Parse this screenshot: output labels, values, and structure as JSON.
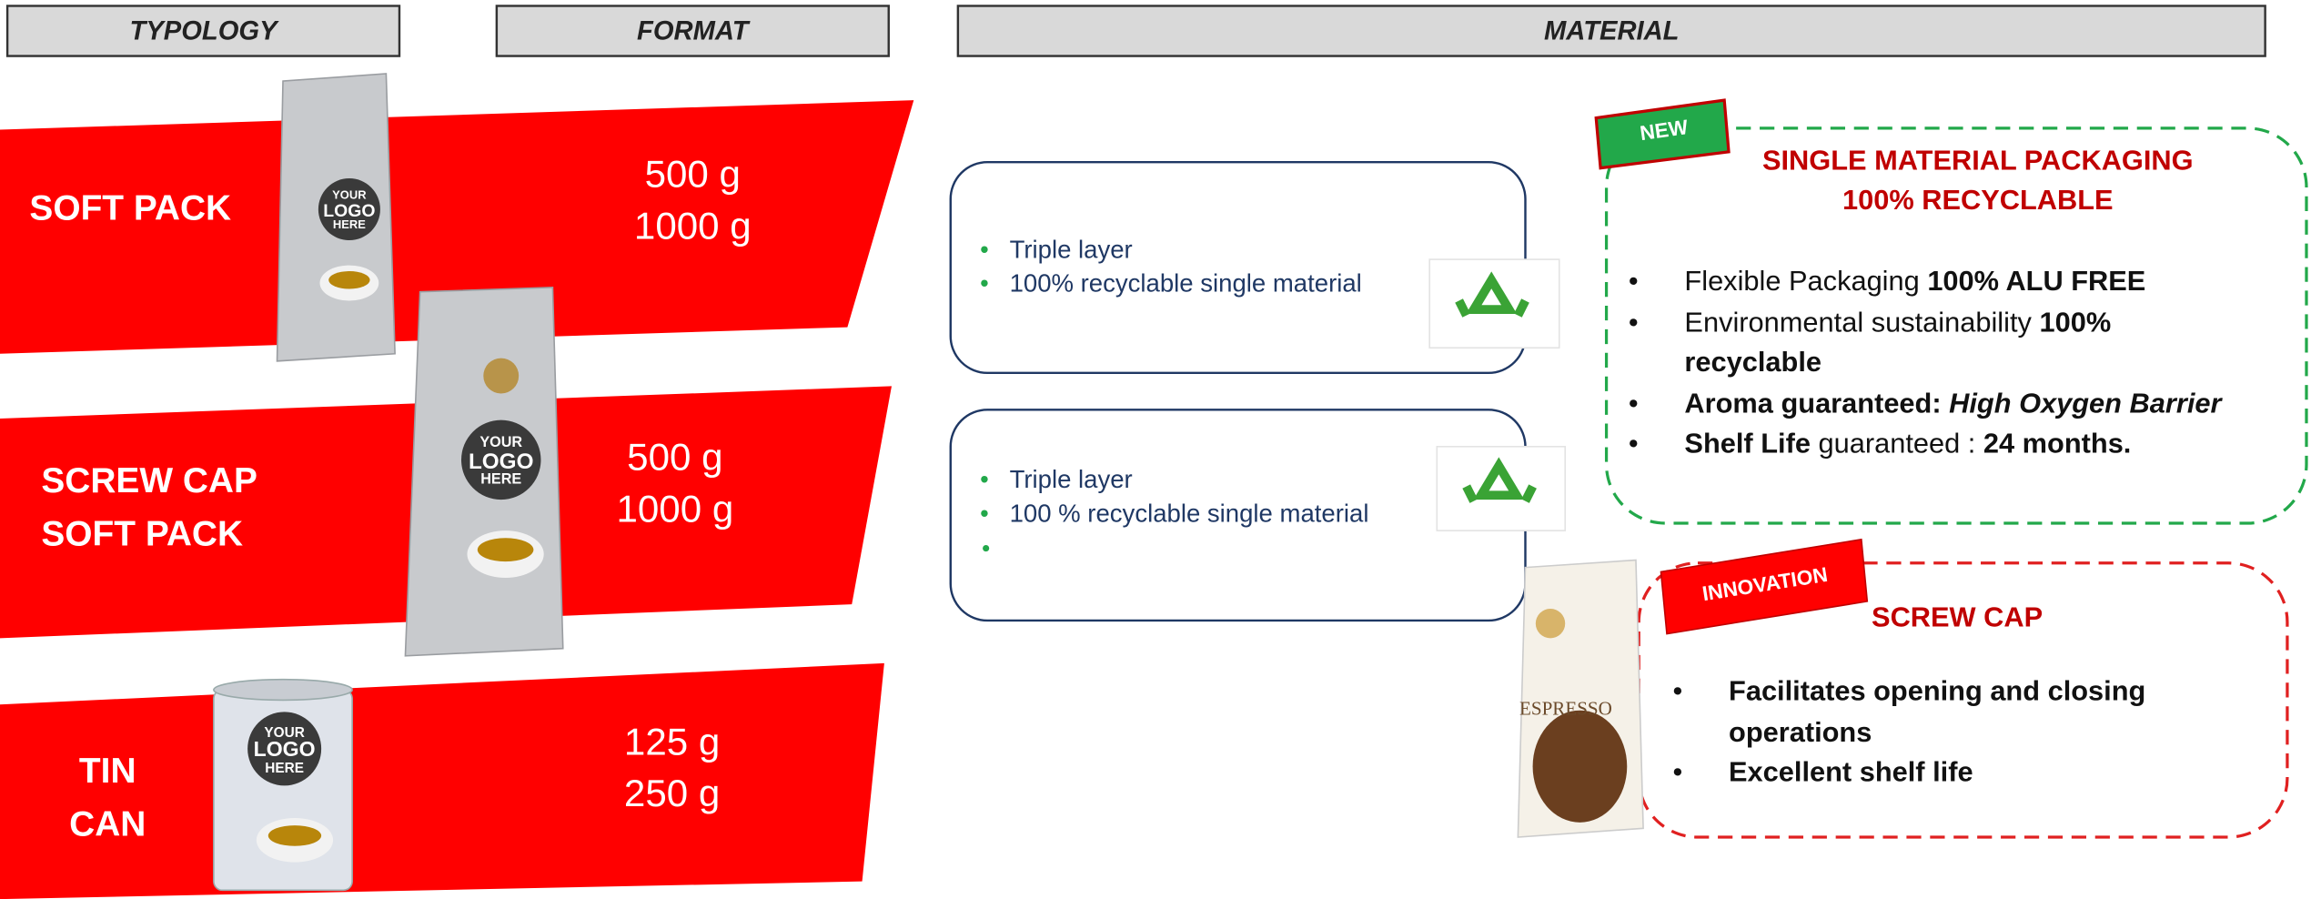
{
  "headers": {
    "typology": "TYPOLOGY",
    "format": "FORMAT",
    "material": "MATERIAL"
  },
  "rows": [
    {
      "typology": [
        "SOFT PACK"
      ],
      "format": [
        "500 g",
        "1000 g"
      ],
      "logo": [
        "YOUR",
        "LOGO",
        "HERE"
      ]
    },
    {
      "typology": [
        "SCREW CAP",
        "SOFT PACK"
      ],
      "format": [
        "500 g",
        "1000 g"
      ],
      "logo": [
        "YOUR",
        "LOGO",
        "HERE"
      ]
    },
    {
      "typology": [
        "TIN",
        "CAN"
      ],
      "format": [
        "125 g",
        "250 g"
      ],
      "logo": [
        "YOUR",
        "LOGO",
        "HERE"
      ]
    }
  ],
  "material_boxes": [
    {
      "bullets": [
        "Triple layer",
        "100% recyclable single material"
      ]
    },
    {
      "bullets": [
        "Triple layer",
        "100 % recyclable single material"
      ]
    }
  ],
  "panels": [
    {
      "badge": "NEW",
      "title": [
        "SINGLE MATERIAL PACKAGING",
        "100% RECYCLABLE"
      ],
      "bullets": [
        [
          {
            "text": "Flexible Packaging ",
            "bold": false
          },
          {
            "text": "100% ALU FREE",
            "bold": true
          }
        ],
        [
          {
            "text": "Environmental sustainability ",
            "bold": false
          },
          {
            "text": "100% recyclable",
            "bold": true
          }
        ],
        [
          {
            "text": "Aroma guaranteed: ",
            "bold": true
          },
          {
            "text": "High Oxygen Barrier",
            "bold": true,
            "italic": true
          }
        ],
        [
          {
            "text": "Shelf Life",
            "bold": true
          },
          {
            "text": " guaranteed : ",
            "bold": false
          },
          {
            "text": "24 months.",
            "bold": true
          }
        ]
      ]
    },
    {
      "badge": "INNOVATION",
      "title": [
        "SCREW CAP"
      ],
      "bullets": [
        [
          {
            "text": "Facilitates opening and closing operations",
            "bold": true
          }
        ],
        [
          {
            "text": "Excellent shelf life",
            "bold": true
          }
        ]
      ]
    }
  ],
  "espresso_label": "ESPRESSO"
}
